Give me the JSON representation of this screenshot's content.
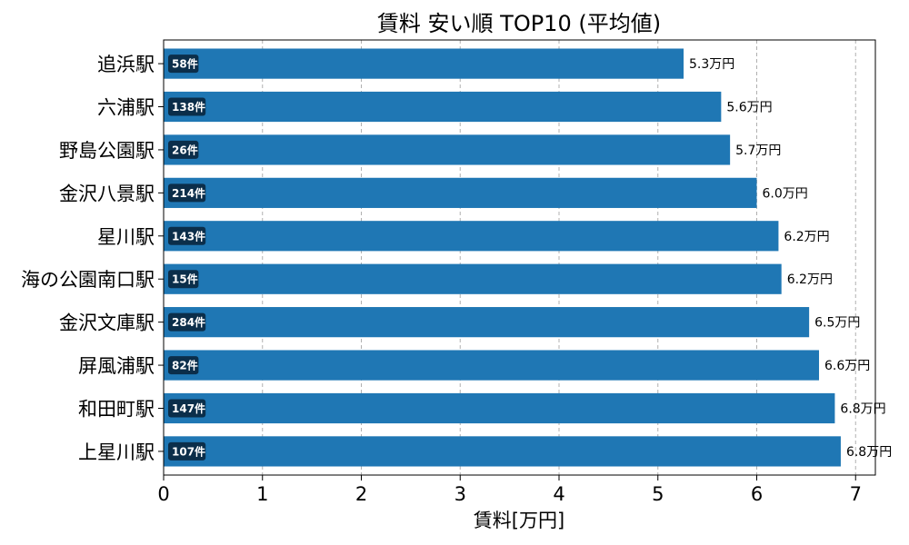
{
  "chart_data": {
    "type": "bar",
    "orientation": "horizontal",
    "title": "賃料 安い順 TOP10 (平均値)",
    "xlabel": "賃料[万円]",
    "ylabel": "",
    "xlim": [
      0,
      7.2
    ],
    "xticks": [
      0,
      1,
      2,
      3,
      4,
      5,
      6,
      7
    ],
    "grid": "vertical dashed",
    "bar_color": "#1f77b4",
    "count_badge_color": "#0b2e4a",
    "categories": [
      "追浜駅",
      "六浦駅",
      "野島公園駅",
      "金沢八景駅",
      "星川駅",
      "海の公園南口駅",
      "金沢文庫駅",
      "屏風浦駅",
      "和田町駅",
      "上星川駅"
    ],
    "values": [
      5.26,
      5.64,
      5.73,
      6.0,
      6.22,
      6.25,
      6.53,
      6.63,
      6.79,
      6.85
    ],
    "value_labels": [
      "5.3万円",
      "5.6万円",
      "5.7万円",
      "6.0万円",
      "6.2万円",
      "6.2万円",
      "6.5万円",
      "6.6万円",
      "6.8万円",
      "6.8万円"
    ],
    "counts": [
      "58件",
      "138件",
      "26件",
      "214件",
      "143件",
      "15件",
      "284件",
      "82件",
      "147件",
      "107件"
    ]
  }
}
